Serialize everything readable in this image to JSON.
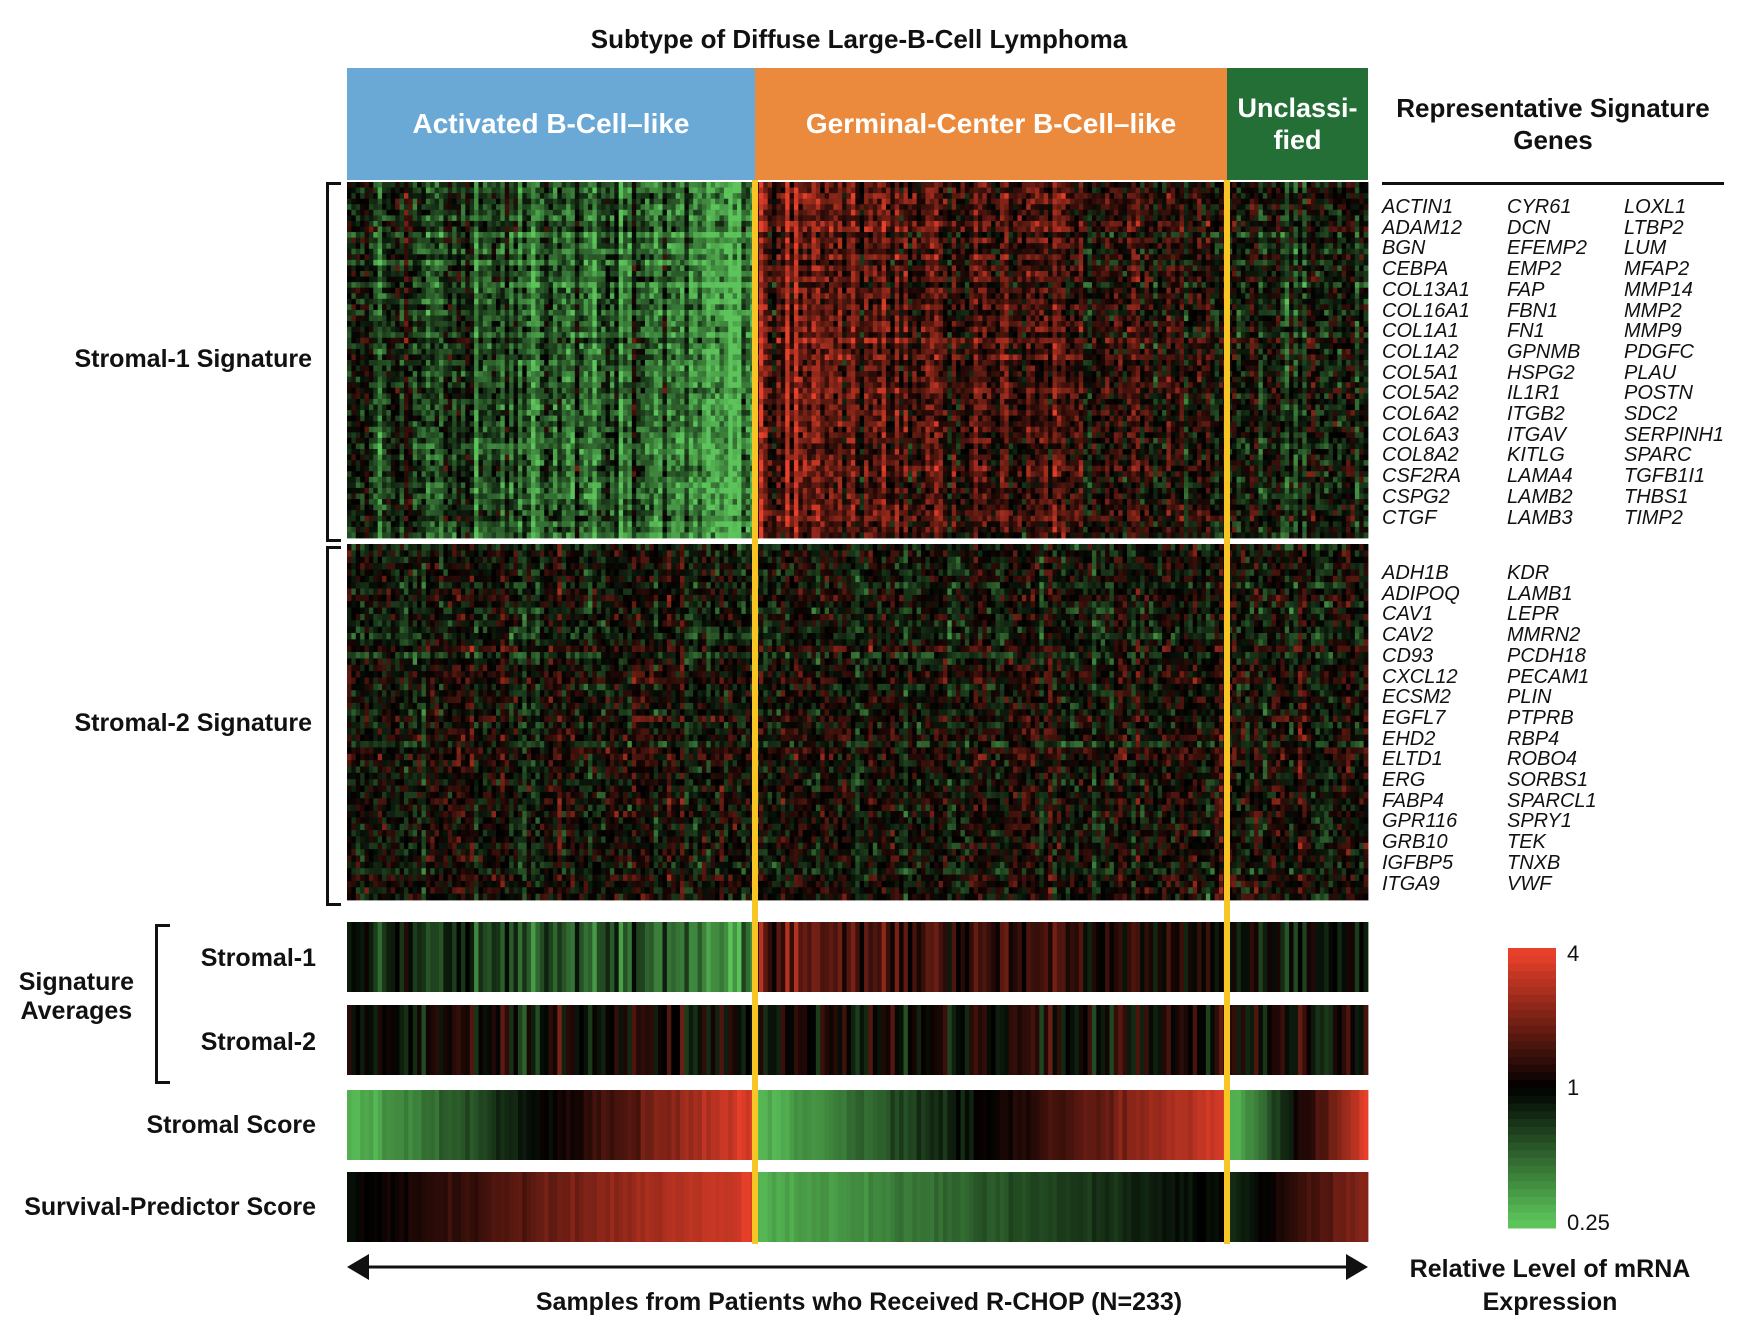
{
  "title": "Subtype of Diffuse Large-B-Cell Lymphoma",
  "subtypes": [
    {
      "label": "Activated B-Cell–like",
      "color": "#6aa8d6",
      "fraction": 0.4
    },
    {
      "label": "Germinal-Center B-Cell–like",
      "color": "#eb8a3c",
      "fraction": 0.462
    },
    {
      "label": "Unclassi-\nfied",
      "color": "#236f36",
      "fraction": 0.138
    }
  ],
  "signature_genes_title": "Representative Signature Genes",
  "stromal1_genes": [
    [
      "ACTIN1",
      "ADAM12",
      "BGN",
      "CEBPA",
      "COL13A1",
      "COL16A1",
      "COL1A1",
      "COL1A2",
      "COL5A1",
      "COL5A2",
      "COL6A2",
      "COL6A3",
      "COL8A2",
      "CSF2RA",
      "CSPG2",
      "CTGF"
    ],
    [
      "CYR61",
      "DCN",
      "EFEMP2",
      "EMP2",
      "FAP",
      "FBN1",
      "FN1",
      "GPNMB",
      "HSPG2",
      "IL1R1",
      "ITGB2",
      "ITGAV",
      "KITLG",
      "LAMA4",
      "LAMB2",
      "LAMB3"
    ],
    [
      "LOXL1",
      "LTBP2",
      "LUM",
      "MFAP2",
      "MMP14",
      "MMP2",
      "MMP9",
      "PDGFC",
      "PLAU",
      "POSTN",
      "SDC2",
      "SERPINH1",
      "SPARC",
      "TGFB1I1",
      "THBS1",
      "TIMP2"
    ]
  ],
  "stromal2_genes": [
    [
      "ADH1B",
      "ADIPOQ",
      "CAV1",
      "CAV2",
      "CD93",
      "CXCL12",
      "ECSM2",
      "EGFL7",
      "EHD2",
      "ELTD1",
      "ERG",
      "FABP4",
      "GPR116",
      "GRB10",
      "IGFBP5",
      "ITGA9"
    ],
    [
      "KDR",
      "LAMB1",
      "LEPR",
      "MMRN2",
      "PCDH18",
      "PECAM1",
      "PLIN",
      "PTPRB",
      "RBP4",
      "ROBO4",
      "SORBS1",
      "SPARCL1",
      "SPRY1",
      "TEK",
      "TNXB",
      "VWF"
    ]
  ],
  "row_labels": {
    "stromal1": "Stromal-1 Signature",
    "stromal2": "Stromal-2 Signature",
    "signature_averages": "Signature\nAverages",
    "avg1": "Stromal-1",
    "avg2": "Stromal-2",
    "stromal_score": "Stromal Score",
    "survival": "Survival-Predictor Score"
  },
  "x_axis_label": "Samples from Patients who Received R-CHOP (N=233)",
  "legend": {
    "title": "Relative Level of mRNA Expression",
    "max_label": "4",
    "mid_label": "1",
    "min_label": "0.25",
    "high_color": "#e8402a",
    "mid_color": "#000000",
    "low_color": "#5cc45a"
  },
  "divider_color": "#f7c625",
  "chart_data": {
    "type": "heatmap",
    "title": "Subtype of Diffuse Large-B-Cell Lymphoma",
    "n_samples": 233,
    "groups": [
      {
        "name": "Activated B-Cell–like",
        "n_samples": 93
      },
      {
        "name": "Germinal-Center B-Cell–like",
        "n_samples": 108
      },
      {
        "name": "Unclassified",
        "n_samples": 32
      }
    ],
    "rows": [
      "Stromal-1 Signature",
      "Stromal-2 Signature",
      "Stromal-1",
      "Stromal-2",
      "Stromal Score",
      "Survival-Predictor Score"
    ],
    "xlabel": "Samples from Patients who Received R-CHOP (N=233)",
    "color_scale": {
      "min": 0.25,
      "mid": 1,
      "max": 4,
      "scale": "log",
      "low": "green",
      "mid_color": "black",
      "high": "red"
    }
  }
}
